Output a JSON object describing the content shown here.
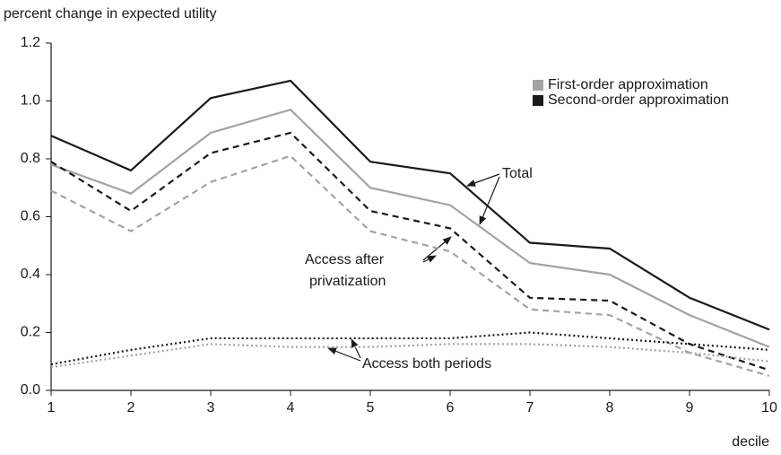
{
  "chart_data": {
    "type": "line",
    "y_label": "percent change in expected utility",
    "x_label": "decile",
    "x": [
      1,
      2,
      3,
      4,
      5,
      6,
      7,
      8,
      9,
      10
    ],
    "xlim": [
      1,
      10
    ],
    "xticks": [
      1,
      2,
      3,
      4,
      5,
      6,
      7,
      8,
      9,
      10
    ],
    "ylim": [
      0,
      1.2
    ],
    "yticks": [
      {
        "value": 0,
        "label": "0.0"
      },
      0.2,
      0.4,
      0.6,
      0.8,
      {
        "value": 1,
        "label": "1.0"
      },
      1.2
    ],
    "grid": false,
    "legend_position": "upper right",
    "legend": [
      {
        "label": "First-order approximation",
        "color": "#a3a3a3"
      },
      {
        "label": "Second-order approximation",
        "color": "#1a1a1a"
      }
    ],
    "series": [
      {
        "legend": 1,
        "style": "solid",
        "values": [
          0.88,
          0.76,
          1.01,
          1.07,
          0.79,
          0.75,
          0.51,
          0.49,
          0.32,
          0.21
        ]
      },
      {
        "legend": 0,
        "style": "solid",
        "values": [
          0.78,
          0.68,
          0.89,
          0.97,
          0.7,
          0.64,
          0.44,
          0.4,
          0.26,
          0.15
        ]
      },
      {
        "legend": 1,
        "style": "dashed",
        "values": [
          0.79,
          0.62,
          0.82,
          0.89,
          0.62,
          0.56,
          0.32,
          0.31,
          0.16,
          0.07
        ]
      },
      {
        "legend": 0,
        "style": "dashed",
        "values": [
          0.69,
          0.55,
          0.72,
          0.81,
          0.55,
          0.48,
          0.28,
          0.26,
          0.13,
          0.05
        ]
      },
      {
        "legend": 1,
        "style": "dotted",
        "values": [
          0.09,
          0.14,
          0.18,
          0.18,
          0.18,
          0.18,
          0.2,
          0.18,
          0.16,
          0.14
        ]
      },
      {
        "legend": 0,
        "style": "dotted",
        "values": [
          0.08,
          0.12,
          0.16,
          0.15,
          0.15,
          0.16,
          0.16,
          0.15,
          0.13,
          0.1
        ]
      }
    ],
    "annotations": [
      "Total",
      "Access after",
      "privatization",
      "Access both periods"
    ]
  }
}
